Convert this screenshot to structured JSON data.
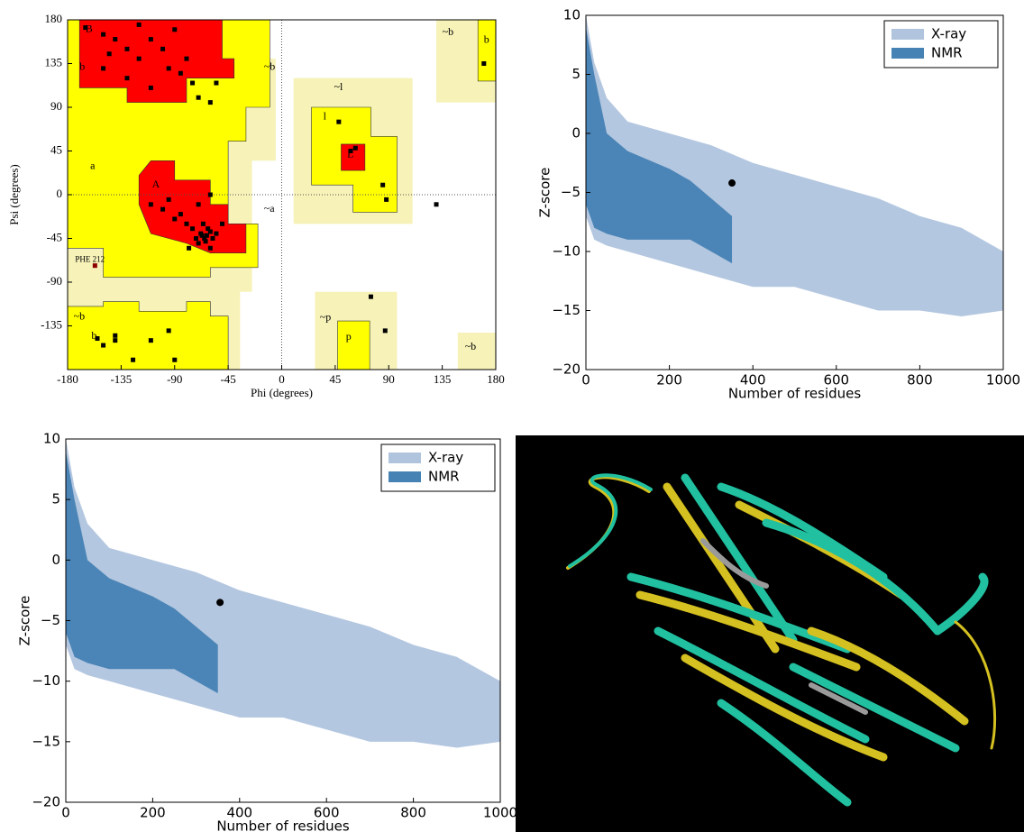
{
  "chart_data": [
    {
      "type": "ramachandran",
      "xlabel": "Phi (degrees)",
      "ylabel": "Psi (degrees)",
      "xlim": [
        -180,
        180
      ],
      "ylim": [
        -180,
        180
      ],
      "xticks": [
        -180,
        -135,
        -90,
        -45,
        0,
        45,
        90,
        135,
        180
      ],
      "yticks": [
        -135,
        -90,
        -45,
        0,
        45,
        90,
        135,
        180
      ],
      "regions": [
        {
          "color": "#f6f2b8",
          "points": [
            [
              -180,
              180
            ],
            [
              -20,
              180
            ],
            [
              -20,
              140
            ],
            [
              -5,
              140
            ],
            [
              -5,
              35
            ],
            [
              -25,
              35
            ],
            [
              -25,
              -100
            ],
            [
              -35,
              -100
            ],
            [
              -35,
              -180
            ],
            [
              -180,
              -180
            ]
          ]
        },
        {
          "color": "#f6f2b8",
          "points": [
            [
              10,
              120
            ],
            [
              110,
              120
            ],
            [
              110,
              -30
            ],
            [
              10,
              -30
            ]
          ]
        },
        {
          "color": "#f6f2b8",
          "points": [
            [
              28,
              -100
            ],
            [
              97,
              -100
            ],
            [
              97,
              -180
            ],
            [
              28,
              -180
            ]
          ]
        },
        {
          "color": "#f6f2b8",
          "points": [
            [
              130,
              180
            ],
            [
              180,
              180
            ],
            [
              180,
              95
            ],
            [
              130,
              95
            ]
          ]
        },
        {
          "color": "#f6f2b8",
          "points": [
            [
              148,
              -142
            ],
            [
              180,
              -142
            ],
            [
              180,
              -180
            ],
            [
              148,
              -180
            ]
          ]
        },
        {
          "color": "#ffff00",
          "points": [
            [
              -180,
              180
            ],
            [
              -10,
              180
            ],
            [
              -10,
              90
            ],
            [
              -30,
              90
            ],
            [
              -30,
              55
            ],
            [
              -45,
              55
            ],
            [
              -45,
              -30
            ],
            [
              -20,
              -30
            ],
            [
              -20,
              -75
            ],
            [
              -60,
              -75
            ],
            [
              -60,
              -85
            ],
            [
              -150,
              -85
            ],
            [
              -150,
              -55
            ],
            [
              -180,
              -55
            ]
          ]
        },
        {
          "color": "#ffff00",
          "points": [
            [
              -180,
              -115
            ],
            [
              -150,
              -115
            ],
            [
              -150,
              -110
            ],
            [
              -120,
              -110
            ],
            [
              -120,
              -120
            ],
            [
              -80,
              -120
            ],
            [
              -80,
              -110
            ],
            [
              -60,
              -110
            ],
            [
              -60,
              -125
            ],
            [
              -45,
              -125
            ],
            [
              -45,
              -180
            ],
            [
              -180,
              -180
            ]
          ]
        },
        {
          "color": "#ffff00",
          "points": [
            [
              25,
              90
            ],
            [
              75,
              90
            ],
            [
              75,
              60
            ],
            [
              97,
              60
            ],
            [
              97,
              -18
            ],
            [
              60,
              -18
            ],
            [
              60,
              10
            ],
            [
              25,
              10
            ]
          ]
        },
        {
          "color": "#ffff00",
          "points": [
            [
              47,
              -130
            ],
            [
              74,
              -130
            ],
            [
              74,
              -180
            ],
            [
              47,
              -180
            ]
          ]
        },
        {
          "color": "#ffff00",
          "points": [
            [
              165,
              180
            ],
            [
              180,
              180
            ],
            [
              180,
              117
            ],
            [
              165,
              117
            ]
          ]
        },
        {
          "color": "#ff0000",
          "points": [
            [
              -170,
              180
            ],
            [
              -50,
              180
            ],
            [
              -50,
              140
            ],
            [
              -40,
              140
            ],
            [
              -40,
              120
            ],
            [
              -80,
              120
            ],
            [
              -80,
              95
            ],
            [
              -130,
              95
            ],
            [
              -130,
              110
            ],
            [
              -170,
              110
            ]
          ]
        },
        {
          "color": "#ff0000",
          "points": [
            [
              -110,
              35
            ],
            [
              -90,
              35
            ],
            [
              -90,
              15
            ],
            [
              -60,
              15
            ],
            [
              -60,
              -10
            ],
            [
              -45,
              -10
            ],
            [
              -45,
              -30
            ],
            [
              -30,
              -30
            ],
            [
              -30,
              -60
            ],
            [
              -60,
              -60
            ],
            [
              -80,
              -50
            ],
            [
              -110,
              -40
            ],
            [
              -120,
              -10
            ],
            [
              -120,
              20
            ]
          ]
        },
        {
          "color": "#ff0000",
          "points": [
            [
              50,
              52
            ],
            [
              70,
              52
            ],
            [
              70,
              25
            ],
            [
              50,
              25
            ]
          ]
        }
      ],
      "points": {
        "color": "#000000",
        "x": [
          -165,
          -150,
          -140,
          -130,
          -145,
          -120,
          -110,
          -100,
          -95,
          -85,
          -75,
          -70,
          -60,
          -130,
          -150,
          -90,
          -120,
          -80,
          -55,
          -110,
          -63,
          -60,
          -65,
          -68,
          -58,
          -62,
          -70,
          -55,
          -66,
          -60,
          -75,
          -72,
          -80,
          -85,
          -90,
          -100,
          -95,
          -70,
          -60,
          -110,
          -50,
          -78,
          -64,
          -67,
          58,
          62,
          48,
          85,
          88,
          130,
          87,
          75,
          170,
          -155,
          -150,
          -140,
          -125,
          -95,
          -90,
          -110,
          -140
        ],
        "y": [
          172,
          165,
          160,
          150,
          145,
          140,
          160,
          150,
          130,
          125,
          115,
          100,
          95,
          120,
          130,
          170,
          175,
          140,
          115,
          110,
          -42,
          -38,
          -45,
          -40,
          -45,
          -35,
          -50,
          -40,
          -30,
          -55,
          -35,
          -45,
          -30,
          -20,
          -25,
          -15,
          -5,
          -10,
          0,
          -10,
          -30,
          -55,
          -48,
          -42,
          45,
          48,
          75,
          10,
          -5,
          -10,
          -140,
          -105,
          135,
          -148,
          -155,
          -150,
          -170,
          -140,
          -170,
          -150,
          -145
        ]
      },
      "highlight": {
        "label": "PHE 212",
        "color": "#8b0000",
        "x": -157,
        "y": -73
      },
      "annotations": [
        {
          "text": "B",
          "x": -165,
          "y": 170
        },
        {
          "text": "b",
          "x": -170,
          "y": 131
        },
        {
          "text": "a",
          "x": -161,
          "y": 29
        },
        {
          "text": "A",
          "x": -109,
          "y": 10
        },
        {
          "text": "L",
          "x": 55,
          "y": 41
        },
        {
          "text": "l",
          "x": 35,
          "y": 80
        },
        {
          "text": "~l",
          "x": 44,
          "y": 110
        },
        {
          "text": "~b",
          "x": -15,
          "y": 131
        },
        {
          "text": "~a",
          "x": -15,
          "y": -15
        },
        {
          "text": "~b",
          "x": 135,
          "y": 167
        },
        {
          "text": "b",
          "x": 170,
          "y": 159
        },
        {
          "text": "~b",
          "x": -175,
          "y": -126
        },
        {
          "text": "b",
          "x": -160,
          "y": -146
        },
        {
          "text": "~p",
          "x": 32,
          "y": -127
        },
        {
          "text": "p",
          "x": 54,
          "y": -147
        },
        {
          "text": "~b",
          "x": 154,
          "y": -157
        }
      ]
    },
    {
      "type": "zscore",
      "xlabel": "Number of residues",
      "ylabel": "Z-score",
      "xlim": [
        0,
        1000
      ],
      "ylim": [
        -20,
        10
      ],
      "xticks": [
        0,
        200,
        400,
        600,
        800,
        1000
      ],
      "yticks": [
        {
          "value": -20,
          "label": "−20"
        },
        {
          "value": -15,
          "label": "−15"
        },
        {
          "value": -10,
          "label": "−10"
        },
        {
          "value": -5,
          "label": "−5"
        },
        0,
        5,
        10
      ],
      "legend": "upper right",
      "series": [
        {
          "name": "X-ray",
          "color": "#b0c4de",
          "x": [
            0,
            20,
            50,
            100,
            200,
            300,
            400,
            500,
            600,
            700,
            800,
            900,
            1000
          ],
          "upper": [
            10,
            6,
            3,
            1,
            0,
            -1,
            -2.5,
            -3.5,
            -4.5,
            -5.5,
            -7,
            -8,
            -10
          ],
          "lower": [
            -7,
            -9,
            -9.5,
            -10,
            -11,
            -12,
            -13,
            -13,
            -14,
            -15,
            -15,
            -15.5,
            -15
          ]
        },
        {
          "name": "NMR",
          "color": "#4682b4",
          "x": [
            0,
            20,
            50,
            100,
            200,
            250,
            300,
            350
          ],
          "upper": [
            9,
            5,
            0,
            -1.5,
            -3,
            -4,
            -5.5,
            -7
          ],
          "lower": [
            -6,
            -8,
            -8.5,
            -9,
            -9,
            -9,
            -10,
            -11
          ]
        }
      ],
      "points": {
        "color": "#000000",
        "x": [
          350
        ],
        "y": [
          -4.2
        ]
      }
    },
    {
      "type": "zscore",
      "xlabel": "Number of residues",
      "ylabel": "Z-score",
      "xlim": [
        0,
        1000
      ],
      "ylim": [
        -20,
        10
      ],
      "xticks": [
        0,
        200,
        400,
        600,
        800,
        1000
      ],
      "yticks": [
        {
          "value": -20,
          "label": "−20"
        },
        {
          "value": -15,
          "label": "−15"
        },
        {
          "value": -10,
          "label": "−10"
        },
        {
          "value": -5,
          "label": "−5"
        },
        0,
        5,
        10
      ],
      "legend": "upper right",
      "series": [
        {
          "name": "X-ray",
          "color": "#b0c4de",
          "x": [
            0,
            20,
            50,
            100,
            200,
            300,
            400,
            500,
            600,
            700,
            800,
            900,
            1000
          ],
          "upper": [
            10,
            6,
            3,
            1,
            0,
            -1,
            -2.5,
            -3.5,
            -4.5,
            -5.5,
            -7,
            -8,
            -10
          ],
          "lower": [
            -7,
            -9,
            -9.5,
            -10,
            -11,
            -12,
            -13,
            -13,
            -14,
            -15,
            -15,
            -15.5,
            -15
          ]
        },
        {
          "name": "NMR",
          "color": "#4682b4",
          "x": [
            0,
            20,
            50,
            100,
            200,
            250,
            300,
            350
          ],
          "upper": [
            9,
            5,
            0,
            -1.5,
            -3,
            -4,
            -5.5,
            -7
          ],
          "lower": [
            -6,
            -8,
            -8.5,
            -9,
            -9,
            -9,
            -10,
            -11
          ]
        }
      ],
      "points": {
        "color": "#000000",
        "x": [
          355
        ],
        "y": [
          -3.5
        ]
      }
    }
  ]
}
